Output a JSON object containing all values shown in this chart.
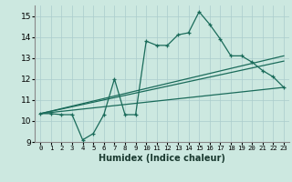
{
  "title": "",
  "xlabel": "Humidex (Indice chaleur)",
  "xlim": [
    -0.5,
    23.5
  ],
  "ylim": [
    9,
    15.5
  ],
  "yticks": [
    9,
    10,
    11,
    12,
    13,
    14,
    15
  ],
  "xticks": [
    0,
    1,
    2,
    3,
    4,
    5,
    6,
    7,
    8,
    9,
    10,
    11,
    12,
    13,
    14,
    15,
    16,
    17,
    18,
    19,
    20,
    21,
    22,
    23
  ],
  "background_color": "#cce8e0",
  "grid_color": "#aacccc",
  "line_color": "#1a6b5a",
  "line1_x": [
    0,
    1,
    2,
    3,
    4,
    5,
    6,
    7,
    8,
    9,
    10,
    11,
    12,
    13,
    14,
    15,
    16,
    17,
    18,
    19,
    20,
    21,
    22,
    23
  ],
  "line1_y": [
    10.35,
    10.35,
    10.3,
    10.3,
    9.1,
    9.4,
    10.3,
    12.0,
    10.3,
    10.3,
    13.8,
    13.6,
    13.6,
    14.1,
    14.2,
    15.2,
    14.6,
    13.9,
    13.1,
    13.1,
    12.8,
    12.4,
    12.1,
    11.6
  ],
  "line2_x": [
    0,
    23
  ],
  "line2_y": [
    10.35,
    11.6
  ],
  "line3_x": [
    0,
    23
  ],
  "line3_y": [
    10.35,
    13.1
  ],
  "line4_x": [
    0,
    23
  ],
  "line4_y": [
    10.35,
    12.85
  ]
}
